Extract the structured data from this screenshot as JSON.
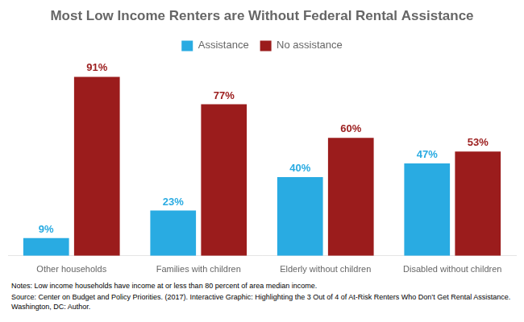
{
  "chart_data": {
    "type": "bar",
    "title": "Most Low Income Renters are Without Federal Rental Assistance",
    "categories": [
      "Other households",
      "Families with children",
      "Elderly without children",
      "Disabled without children"
    ],
    "series": [
      {
        "name": "Assistance",
        "color": "#29ABE2",
        "values": [
          9,
          23,
          40,
          47
        ],
        "value_labels": [
          "9%",
          "23%",
          "40%",
          "47%"
        ]
      },
      {
        "name": "No assistance",
        "color": "#9B1C1C",
        "values": [
          91,
          77,
          60,
          53
        ],
        "value_labels": [
          "91%",
          "77%",
          "60%",
          "53%"
        ]
      }
    ],
    "ylim": [
      0,
      100
    ],
    "grid": false,
    "legend": "top",
    "data_labels": true,
    "tick_labels": "x",
    "annotations": [
      "Notes: Low income households have income at or less than 80 percent of area median income.",
      "Source: Center on Budget and Policy Priorities. (2017). Interactive Graphic: Highlighting the 3 Out of 4 of At-Risk Renters Who Don’t Get Rental Assistance. Washington, DC: Author."
    ]
  }
}
